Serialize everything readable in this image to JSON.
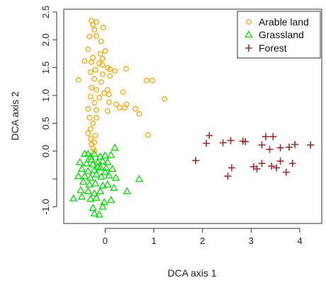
{
  "chart_data": {
    "type": "scatter",
    "title": "",
    "xlabel": "DCA axis 1",
    "ylabel": "DCA axis 2",
    "xlim": [
      -0.85,
      4.45
    ],
    "ylim": [
      -1.3,
      2.55
    ],
    "x_ticks": [
      0,
      1,
      2,
      3,
      4
    ],
    "y_ticks": [
      -1.0,
      -0.5,
      0.0,
      0.5,
      1.0,
      1.5,
      2.0,
      2.5
    ],
    "y_tick_labels": [
      "-1.0",
      "",
      "0.0",
      "0.5",
      "1.0",
      "1.5",
      "2.0",
      "2.5"
    ],
    "grid": false,
    "legend": "top-right",
    "series": [
      {
        "name": "Arable land",
        "marker": "circle",
        "color": "#FFA500",
        "points": [
          [
            -0.28,
            2.34
          ],
          [
            -0.18,
            2.32
          ],
          [
            -0.25,
            2.27
          ],
          [
            -0.04,
            2.22
          ],
          [
            -0.22,
            2.18
          ],
          [
            -0.32,
            2.06
          ],
          [
            -0.18,
            2.07
          ],
          [
            -0.35,
            1.83
          ],
          [
            -0.08,
            1.97
          ],
          [
            -0.1,
            1.75
          ],
          [
            -0.25,
            1.68
          ],
          [
            -0.05,
            1.66
          ],
          [
            0.0,
            1.8
          ],
          [
            -0.42,
            1.62
          ],
          [
            -0.28,
            1.6
          ],
          [
            -0.12,
            1.58
          ],
          [
            -0.06,
            1.55
          ],
          [
            0.05,
            1.5
          ],
          [
            -0.2,
            1.46
          ],
          [
            -0.3,
            1.42
          ],
          [
            0.1,
            1.47
          ],
          [
            0.43,
            1.48
          ],
          [
            -0.05,
            1.38
          ],
          [
            -0.55,
            1.28
          ],
          [
            -0.22,
            1.3
          ],
          [
            -0.08,
            1.24
          ],
          [
            0.1,
            1.35
          ],
          [
            0.2,
            1.44
          ],
          [
            0.85,
            1.27
          ],
          [
            0.97,
            1.27
          ],
          [
            -0.28,
            1.14
          ],
          [
            -0.18,
            1.1
          ],
          [
            0.05,
            1.1
          ],
          [
            0.37,
            1.06
          ],
          [
            -0.02,
            1.04
          ],
          [
            -0.3,
            0.98
          ],
          [
            -0.12,
            0.96
          ],
          [
            0.08,
            1.02
          ],
          [
            1.22,
            0.94
          ],
          [
            -0.22,
            0.87
          ],
          [
            0.08,
            0.88
          ],
          [
            0.23,
            0.84
          ],
          [
            0.44,
            0.84
          ],
          [
            0.4,
            0.78
          ],
          [
            0.3,
            0.78
          ],
          [
            -0.35,
            0.76
          ],
          [
            -0.18,
            0.74
          ],
          [
            0.05,
            0.72
          ],
          [
            0.62,
            0.76
          ],
          [
            0.7,
            0.67
          ],
          [
            -0.32,
            0.6
          ],
          [
            -0.18,
            0.6
          ],
          [
            -0.25,
            0.5
          ],
          [
            -0.3,
            0.4
          ],
          [
            -0.35,
            0.32
          ],
          [
            -0.2,
            0.28
          ],
          [
            -0.3,
            0.22
          ],
          [
            -0.22,
            0.16
          ],
          [
            -0.28,
            0.12
          ],
          [
            0.88,
            0.29
          ],
          [
            -0.25,
            0.05
          ],
          [
            -0.22,
            0.0
          ]
        ]
      },
      {
        "name": "Grassland",
        "marker": "triangle",
        "color": "#00DD00",
        "points": [
          [
            -0.42,
            -0.05
          ],
          [
            -0.3,
            -0.1
          ],
          [
            -0.22,
            -0.05
          ],
          [
            -0.1,
            -0.1
          ],
          [
            0.0,
            -0.08
          ],
          [
            0.12,
            -0.07
          ],
          [
            0.2,
            0.06
          ],
          [
            -0.52,
            -0.2
          ],
          [
            -0.38,
            -0.22
          ],
          [
            -0.25,
            -0.24
          ],
          [
            -0.15,
            -0.2
          ],
          [
            -0.05,
            -0.18
          ],
          [
            0.05,
            -0.2
          ],
          [
            -0.48,
            -0.32
          ],
          [
            -0.35,
            -0.36
          ],
          [
            -0.22,
            -0.34
          ],
          [
            -0.1,
            -0.3
          ],
          [
            0.02,
            -0.3
          ],
          [
            0.15,
            -0.32
          ],
          [
            -0.55,
            -0.45
          ],
          [
            -0.42,
            -0.45
          ],
          [
            -0.3,
            -0.48
          ],
          [
            -0.18,
            -0.42
          ],
          [
            -0.08,
            -0.46
          ],
          [
            0.08,
            -0.44
          ],
          [
            0.22,
            -0.48
          ],
          [
            -0.45,
            -0.55
          ],
          [
            -0.32,
            -0.6
          ],
          [
            -0.2,
            -0.58
          ],
          [
            -0.05,
            -0.62
          ],
          [
            0.05,
            -0.6
          ],
          [
            0.18,
            -0.66
          ],
          [
            0.7,
            -0.5
          ],
          [
            -0.5,
            -0.7
          ],
          [
            -0.35,
            -0.72
          ],
          [
            -0.22,
            -0.76
          ],
          [
            -0.1,
            -0.72
          ],
          [
            0.45,
            -0.72
          ],
          [
            -0.65,
            -0.85
          ],
          [
            -0.48,
            -0.82
          ],
          [
            -0.3,
            -0.86
          ],
          [
            -0.18,
            -0.84
          ],
          [
            0.12,
            -0.88
          ],
          [
            -0.02,
            -0.92
          ],
          [
            -0.25,
            -1.02
          ],
          [
            -0.05,
            -1.0
          ],
          [
            -0.22,
            -1.12
          ],
          [
            -0.12,
            -1.14
          ],
          [
            -0.35,
            -0.05
          ],
          [
            -0.15,
            -0.28
          ],
          [
            -0.28,
            -0.15
          ],
          [
            0.0,
            -0.38
          ]
        ]
      },
      {
        "name": "Forest",
        "marker": "plus",
        "color": "#A52A2A",
        "points": [
          [
            1.86,
            -0.17
          ],
          [
            2.08,
            0.14
          ],
          [
            2.14,
            0.28
          ],
          [
            2.42,
            0.15
          ],
          [
            2.58,
            0.19
          ],
          [
            2.83,
            0.18
          ],
          [
            2.88,
            0.17
          ],
          [
            2.52,
            -0.45
          ],
          [
            2.6,
            -0.3
          ],
          [
            3.05,
            -0.28
          ],
          [
            3.12,
            -0.32
          ],
          [
            3.22,
            0.11
          ],
          [
            3.22,
            -0.22
          ],
          [
            3.3,
            0.26
          ],
          [
            3.38,
            0.03
          ],
          [
            3.45,
            0.26
          ],
          [
            3.42,
            -0.27
          ],
          [
            3.52,
            -0.3
          ],
          [
            3.6,
            0.06
          ],
          [
            3.6,
            -0.18
          ],
          [
            3.72,
            -0.38
          ],
          [
            3.78,
            0.07
          ],
          [
            3.85,
            -0.22
          ],
          [
            3.9,
            0.12
          ],
          [
            4.22,
            0.11
          ]
        ]
      }
    ]
  }
}
